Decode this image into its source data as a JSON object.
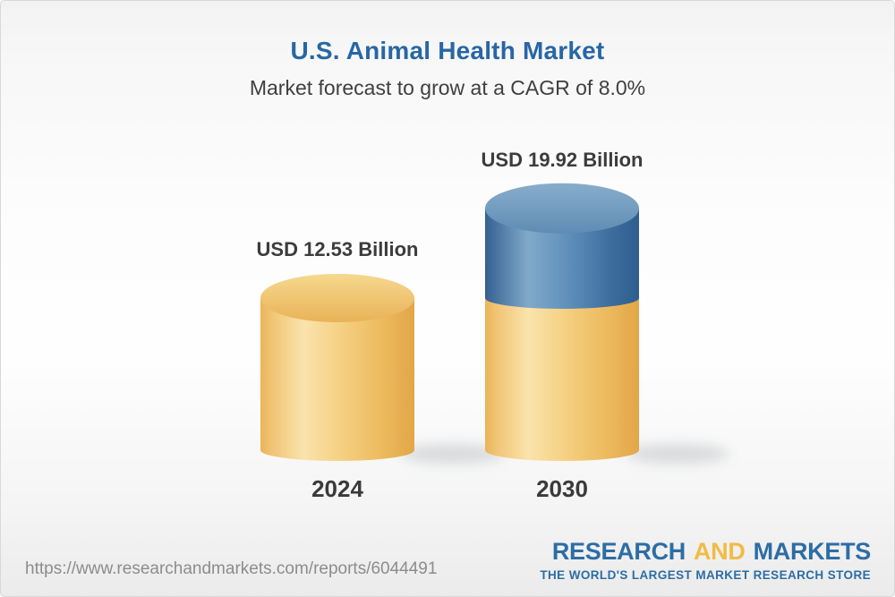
{
  "chart_data": {
    "type": "bar",
    "variant": "3d-cylinder",
    "title": "U.S. Animal Health Market",
    "subtitle": "Market forecast to grow at a CAGR of 8.0%",
    "cagr": "8.0%",
    "unit": "USD Billion",
    "categories": [
      "2024",
      "2030"
    ],
    "values": [
      12.53,
      19.92
    ],
    "ylim": [
      0,
      21
    ],
    "grid": false,
    "legend": "none",
    "bars": [
      {
        "category": "2024",
        "value": 12.53,
        "label": "USD 12.53 Billion",
        "segments": [
          "base"
        ]
      },
      {
        "category": "2030",
        "value": 19.92,
        "label": "USD 19.92 Billion",
        "segments": [
          "base",
          "growth"
        ]
      }
    ],
    "segment_colors": {
      "base": "#F2C66E",
      "growth": "#4D7FAD"
    }
  },
  "footer": {
    "url": "https://www.researchandmarkets.com/reports/6044491",
    "logo": {
      "word1": "RESEARCH",
      "word2": "AND",
      "word3": "MARKETS",
      "tagline": "THE WORLD'S LARGEST MARKET RESEARCH STORE"
    }
  },
  "colors": {
    "title_blue": "#2767A4",
    "label_dark": "#3C3C3C",
    "url_gray": "#8C8C8C",
    "logo_blue": "#2D6DA5",
    "logo_gold": "#F1BB45",
    "cylinder_gold": "#F2C66E",
    "cylinder_blue": "#4D7FAD"
  }
}
